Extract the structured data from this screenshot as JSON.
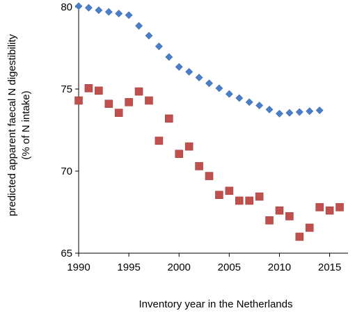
{
  "chart_data": {
    "type": "scatter",
    "title": "",
    "xlabel": "Inventory year in the Netherlands",
    "ylabel_line1": "predicted apparent faecal N digestibility",
    "ylabel_line2": "(% of N intake)",
    "xlim": [
      1990,
      2016
    ],
    "ylim": [
      65,
      80
    ],
    "xticks": [
      1990,
      1995,
      2000,
      2005,
      2010,
      2015
    ],
    "yticks": [
      65,
      70,
      75,
      80
    ],
    "grid": false,
    "legend": "none",
    "series": [
      {
        "marker": "diamond",
        "color": "#4a7ec9",
        "x": [
          1990,
          1991,
          1992,
          1993,
          1994,
          1995,
          1996,
          1997,
          1998,
          1999,
          2000,
          2001,
          2002,
          2003,
          2004,
          2005,
          2006,
          2007,
          2008,
          2009,
          2010,
          2011,
          2012,
          2013,
          2014
        ],
        "y": [
          80.05,
          79.95,
          79.8,
          79.7,
          79.6,
          79.5,
          78.85,
          78.25,
          77.6,
          76.95,
          76.35,
          76.05,
          75.7,
          75.35,
          75.05,
          74.7,
          74.45,
          74.2,
          74.0,
          73.75,
          73.5,
          73.55,
          73.6,
          73.65,
          73.7
        ]
      },
      {
        "marker": "square",
        "color": "#c0504d",
        "x": [
          1990,
          1991,
          1992,
          1993,
          1994,
          1995,
          1996,
          1997,
          1998,
          1999,
          2000,
          2001,
          2002,
          2003,
          2004,
          2005,
          2006,
          2007,
          2008,
          2009,
          2010,
          2011,
          2012,
          2013,
          2014,
          2015,
          2016
        ],
        "y": [
          74.3,
          75.05,
          74.9,
          74.1,
          73.55,
          74.2,
          74.85,
          74.3,
          71.85,
          73.2,
          71.05,
          71.5,
          70.3,
          69.7,
          68.55,
          68.8,
          68.2,
          68.2,
          68.45,
          67.0,
          67.6,
          67.25,
          66.0,
          66.55,
          67.8,
          67.6,
          67.8
        ]
      }
    ]
  }
}
